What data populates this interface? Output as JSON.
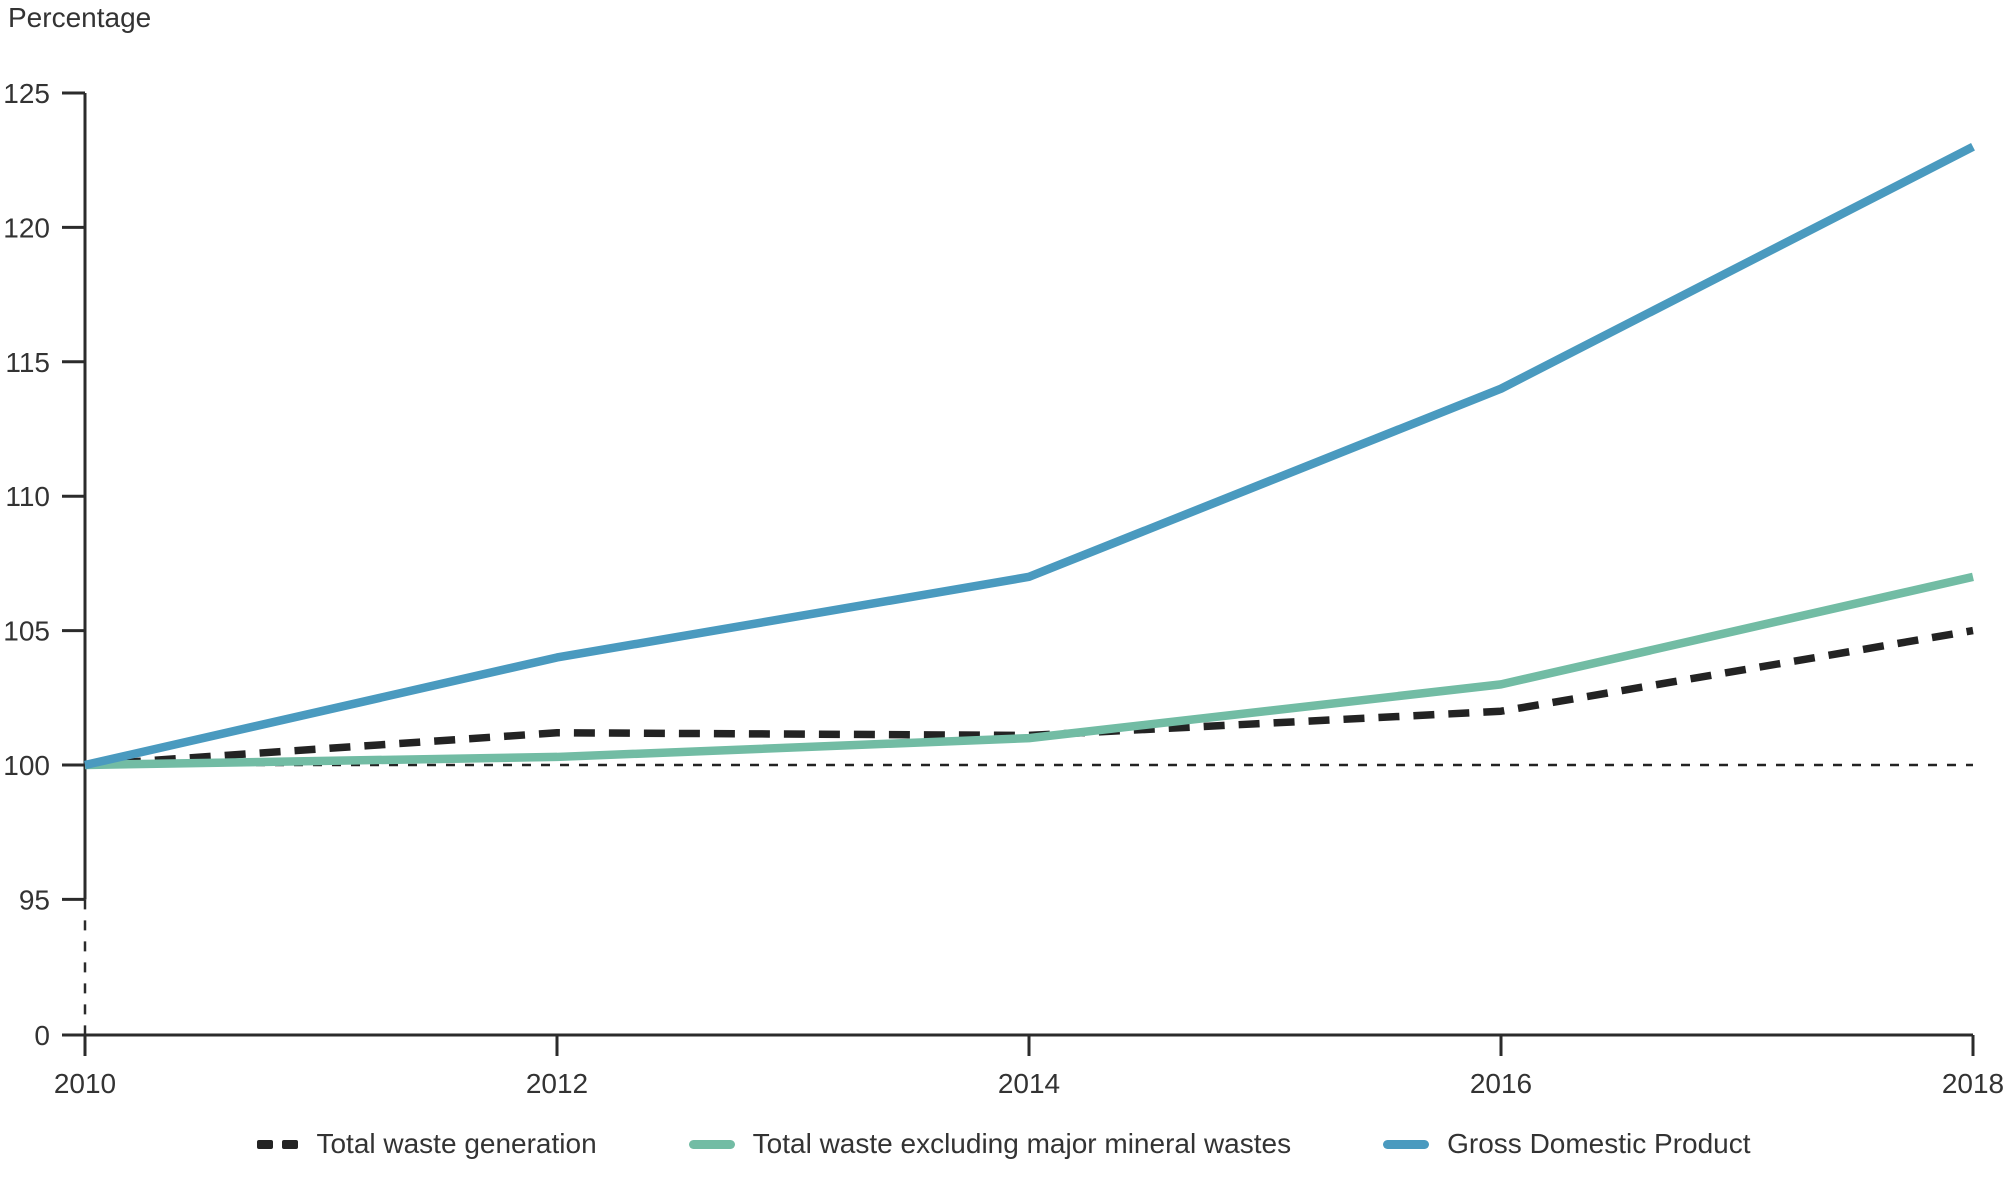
{
  "chart_data": {
    "type": "line",
    "ylabel": "Percentage",
    "x": [
      2010,
      2012,
      2014,
      2016,
      2018
    ],
    "x_tick_labels": [
      "2010",
      "2012",
      "2014",
      "2016",
      "2018"
    ],
    "y_ticks": [
      0,
      95,
      100,
      105,
      110,
      115,
      120,
      125
    ],
    "y_tick_labels": [
      "0",
      "95",
      "100",
      "105",
      "110",
      "115",
      "120",
      "125"
    ],
    "ylim_visible": [
      95,
      125
    ],
    "axis_break_between": [
      0,
      95
    ],
    "reference_line_y": 100,
    "grid": false,
    "legend_position": "bottom",
    "series": [
      {
        "name": "Total waste generation",
        "style": "dashed",
        "color": "#232323",
        "values": [
          100,
          101.2,
          101.1,
          102,
          105
        ]
      },
      {
        "name": "Total waste excluding major mineral wastes",
        "style": "solid",
        "color": "#72bca4",
        "values": [
          100,
          100.3,
          101,
          103,
          107
        ]
      },
      {
        "name": "Gross Domestic Product",
        "style": "solid",
        "color": "#4a9abf",
        "values": [
          100,
          104,
          107,
          114,
          123
        ]
      }
    ]
  },
  "colors": {
    "text": "#333333",
    "axis": "#2b2b2b"
  }
}
